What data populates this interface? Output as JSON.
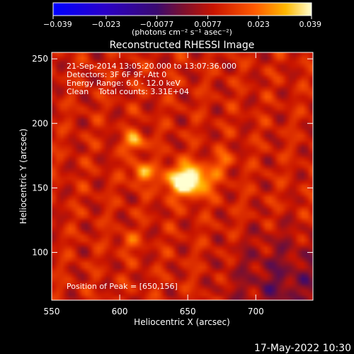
{
  "chart_data": {
    "type": "heatmap",
    "title": "Reconstructed RHESSI Image",
    "xlabel": "Heliocentric X (arcsec)",
    "ylabel": "Heliocentric Y (arcsec)",
    "xlim": [
      550,
      742
    ],
    "ylim": [
      63,
      255
    ],
    "x_ticks": [
      550,
      600,
      650,
      700
    ],
    "y_ticks": [
      100,
      150,
      200,
      250
    ],
    "colorbar": {
      "min": -0.039,
      "max": 0.039,
      "tick_labels": [
        "-0.039",
        "-0.023",
        "-0.0077",
        "0.0077",
        "0.023",
        "0.039"
      ],
      "unit_label": "(photons cm⁻² s⁻¹ asec⁻²)"
    },
    "annotations": [
      "21-Sep-2014 13:05:20.000 to 13:07:36.000",
      "Detectors: 3F 6F 9F, Att 0",
      "Energy Range: 6.0 - 12.0 keV",
      "Clean    Total counts: 3.31E+04"
    ],
    "peak_label": "Position of Peak = [650,156]",
    "peak_position": [
      650,
      156
    ],
    "sources": [
      {
        "x": 650,
        "y": 156,
        "amplitude": 0.039
      },
      {
        "x": 616,
        "y": 162,
        "amplitude": 0.022
      },
      {
        "x": 611,
        "y": 186,
        "amplitude": 0.022
      },
      {
        "x": 676,
        "y": 170,
        "amplitude": 0.012
      },
      {
        "x": 606,
        "y": 108,
        "amplitude": 0.01
      }
    ],
    "background_level": 0.011
  },
  "timestamp": "17-May-2022 10:30"
}
